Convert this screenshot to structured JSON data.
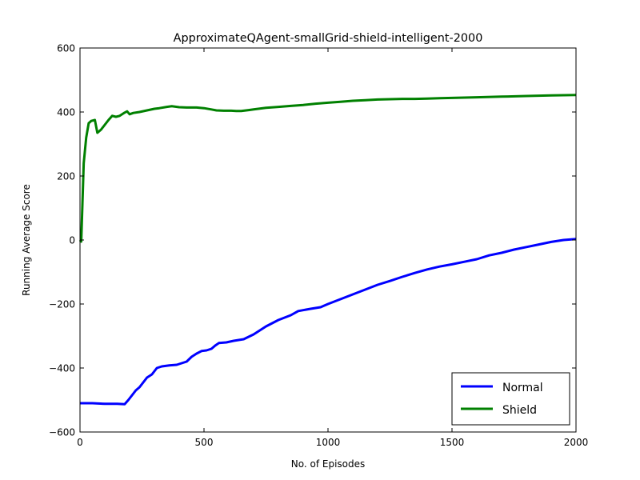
{
  "chart_data": {
    "type": "line",
    "title": "ApproximateQAgent-smallGrid-shield-intelligent-2000",
    "xlabel": "No. of Episodes",
    "ylabel": "Running Average Score",
    "xlim": [
      0,
      2000
    ],
    "ylim": [
      -600,
      600
    ],
    "xticks": [
      0,
      500,
      1000,
      1500,
      2000
    ],
    "yticks": [
      -600,
      -400,
      -200,
      0,
      200,
      400,
      600
    ],
    "xtick_labels": [
      "0",
      "500",
      "1000",
      "1500",
      "2000"
    ],
    "ytick_labels": [
      "−600",
      "−400",
      "−200",
      "0",
      "200",
      "400",
      "600"
    ],
    "grid": false,
    "legend_position": "lower-right",
    "series": [
      {
        "name": "Normal",
        "color": "#0000ff",
        "points": [
          [
            0,
            -510
          ],
          [
            50,
            -510
          ],
          [
            100,
            -512
          ],
          [
            150,
            -512
          ],
          [
            180,
            -513
          ],
          [
            195,
            -500
          ],
          [
            210,
            -485
          ],
          [
            225,
            -470
          ],
          [
            240,
            -460
          ],
          [
            255,
            -445
          ],
          [
            270,
            -430
          ],
          [
            290,
            -420
          ],
          [
            300,
            -410
          ],
          [
            310,
            -400
          ],
          [
            330,
            -395
          ],
          [
            360,
            -392
          ],
          [
            390,
            -390
          ],
          [
            410,
            -385
          ],
          [
            430,
            -380
          ],
          [
            450,
            -365
          ],
          [
            470,
            -355
          ],
          [
            490,
            -347
          ],
          [
            510,
            -345
          ],
          [
            530,
            -340
          ],
          [
            545,
            -330
          ],
          [
            560,
            -322
          ],
          [
            590,
            -320
          ],
          [
            620,
            -315
          ],
          [
            660,
            -310
          ],
          [
            700,
            -295
          ],
          [
            750,
            -270
          ],
          [
            800,
            -250
          ],
          [
            850,
            -235
          ],
          [
            880,
            -222
          ],
          [
            930,
            -215
          ],
          [
            970,
            -210
          ],
          [
            1000,
            -200
          ],
          [
            1050,
            -185
          ],
          [
            1100,
            -170
          ],
          [
            1150,
            -155
          ],
          [
            1200,
            -140
          ],
          [
            1250,
            -128
          ],
          [
            1300,
            -115
          ],
          [
            1350,
            -103
          ],
          [
            1400,
            -92
          ],
          [
            1450,
            -83
          ],
          [
            1500,
            -76
          ],
          [
            1550,
            -68
          ],
          [
            1600,
            -60
          ],
          [
            1650,
            -48
          ],
          [
            1700,
            -40
          ],
          [
            1750,
            -30
          ],
          [
            1800,
            -22
          ],
          [
            1850,
            -14
          ],
          [
            1900,
            -6
          ],
          [
            1950,
            0
          ],
          [
            2000,
            3
          ]
        ]
      },
      {
        "name": "Shield",
        "color": "#008000",
        "points": [
          [
            0,
            0
          ],
          [
            5,
            -5
          ],
          [
            15,
            240
          ],
          [
            25,
            320
          ],
          [
            35,
            365
          ],
          [
            45,
            372
          ],
          [
            60,
            375
          ],
          [
            70,
            335
          ],
          [
            85,
            345
          ],
          [
            100,
            360
          ],
          [
            115,
            375
          ],
          [
            130,
            388
          ],
          [
            145,
            385
          ],
          [
            160,
            388
          ],
          [
            180,
            398
          ],
          [
            190,
            402
          ],
          [
            200,
            393
          ],
          [
            215,
            397
          ],
          [
            240,
            400
          ],
          [
            270,
            405
          ],
          [
            300,
            410
          ],
          [
            320,
            412
          ],
          [
            350,
            416
          ],
          [
            370,
            418
          ],
          [
            400,
            415
          ],
          [
            430,
            414
          ],
          [
            470,
            414
          ],
          [
            500,
            412
          ],
          [
            530,
            408
          ],
          [
            550,
            405
          ],
          [
            580,
            404
          ],
          [
            610,
            404
          ],
          [
            630,
            403
          ],
          [
            650,
            403
          ],
          [
            680,
            406
          ],
          [
            700,
            408
          ],
          [
            750,
            413
          ],
          [
            800,
            416
          ],
          [
            850,
            419
          ],
          [
            900,
            422
          ],
          [
            950,
            426
          ],
          [
            1000,
            429
          ],
          [
            1050,
            432
          ],
          [
            1100,
            435
          ],
          [
            1150,
            437
          ],
          [
            1200,
            439
          ],
          [
            1250,
            440
          ],
          [
            1300,
            441
          ],
          [
            1350,
            441
          ],
          [
            1400,
            442
          ],
          [
            1450,
            443
          ],
          [
            1500,
            444
          ],
          [
            1550,
            445
          ],
          [
            1600,
            446
          ],
          [
            1700,
            448
          ],
          [
            1800,
            450
          ],
          [
            1900,
            452
          ],
          [
            2000,
            453
          ]
        ]
      }
    ]
  }
}
